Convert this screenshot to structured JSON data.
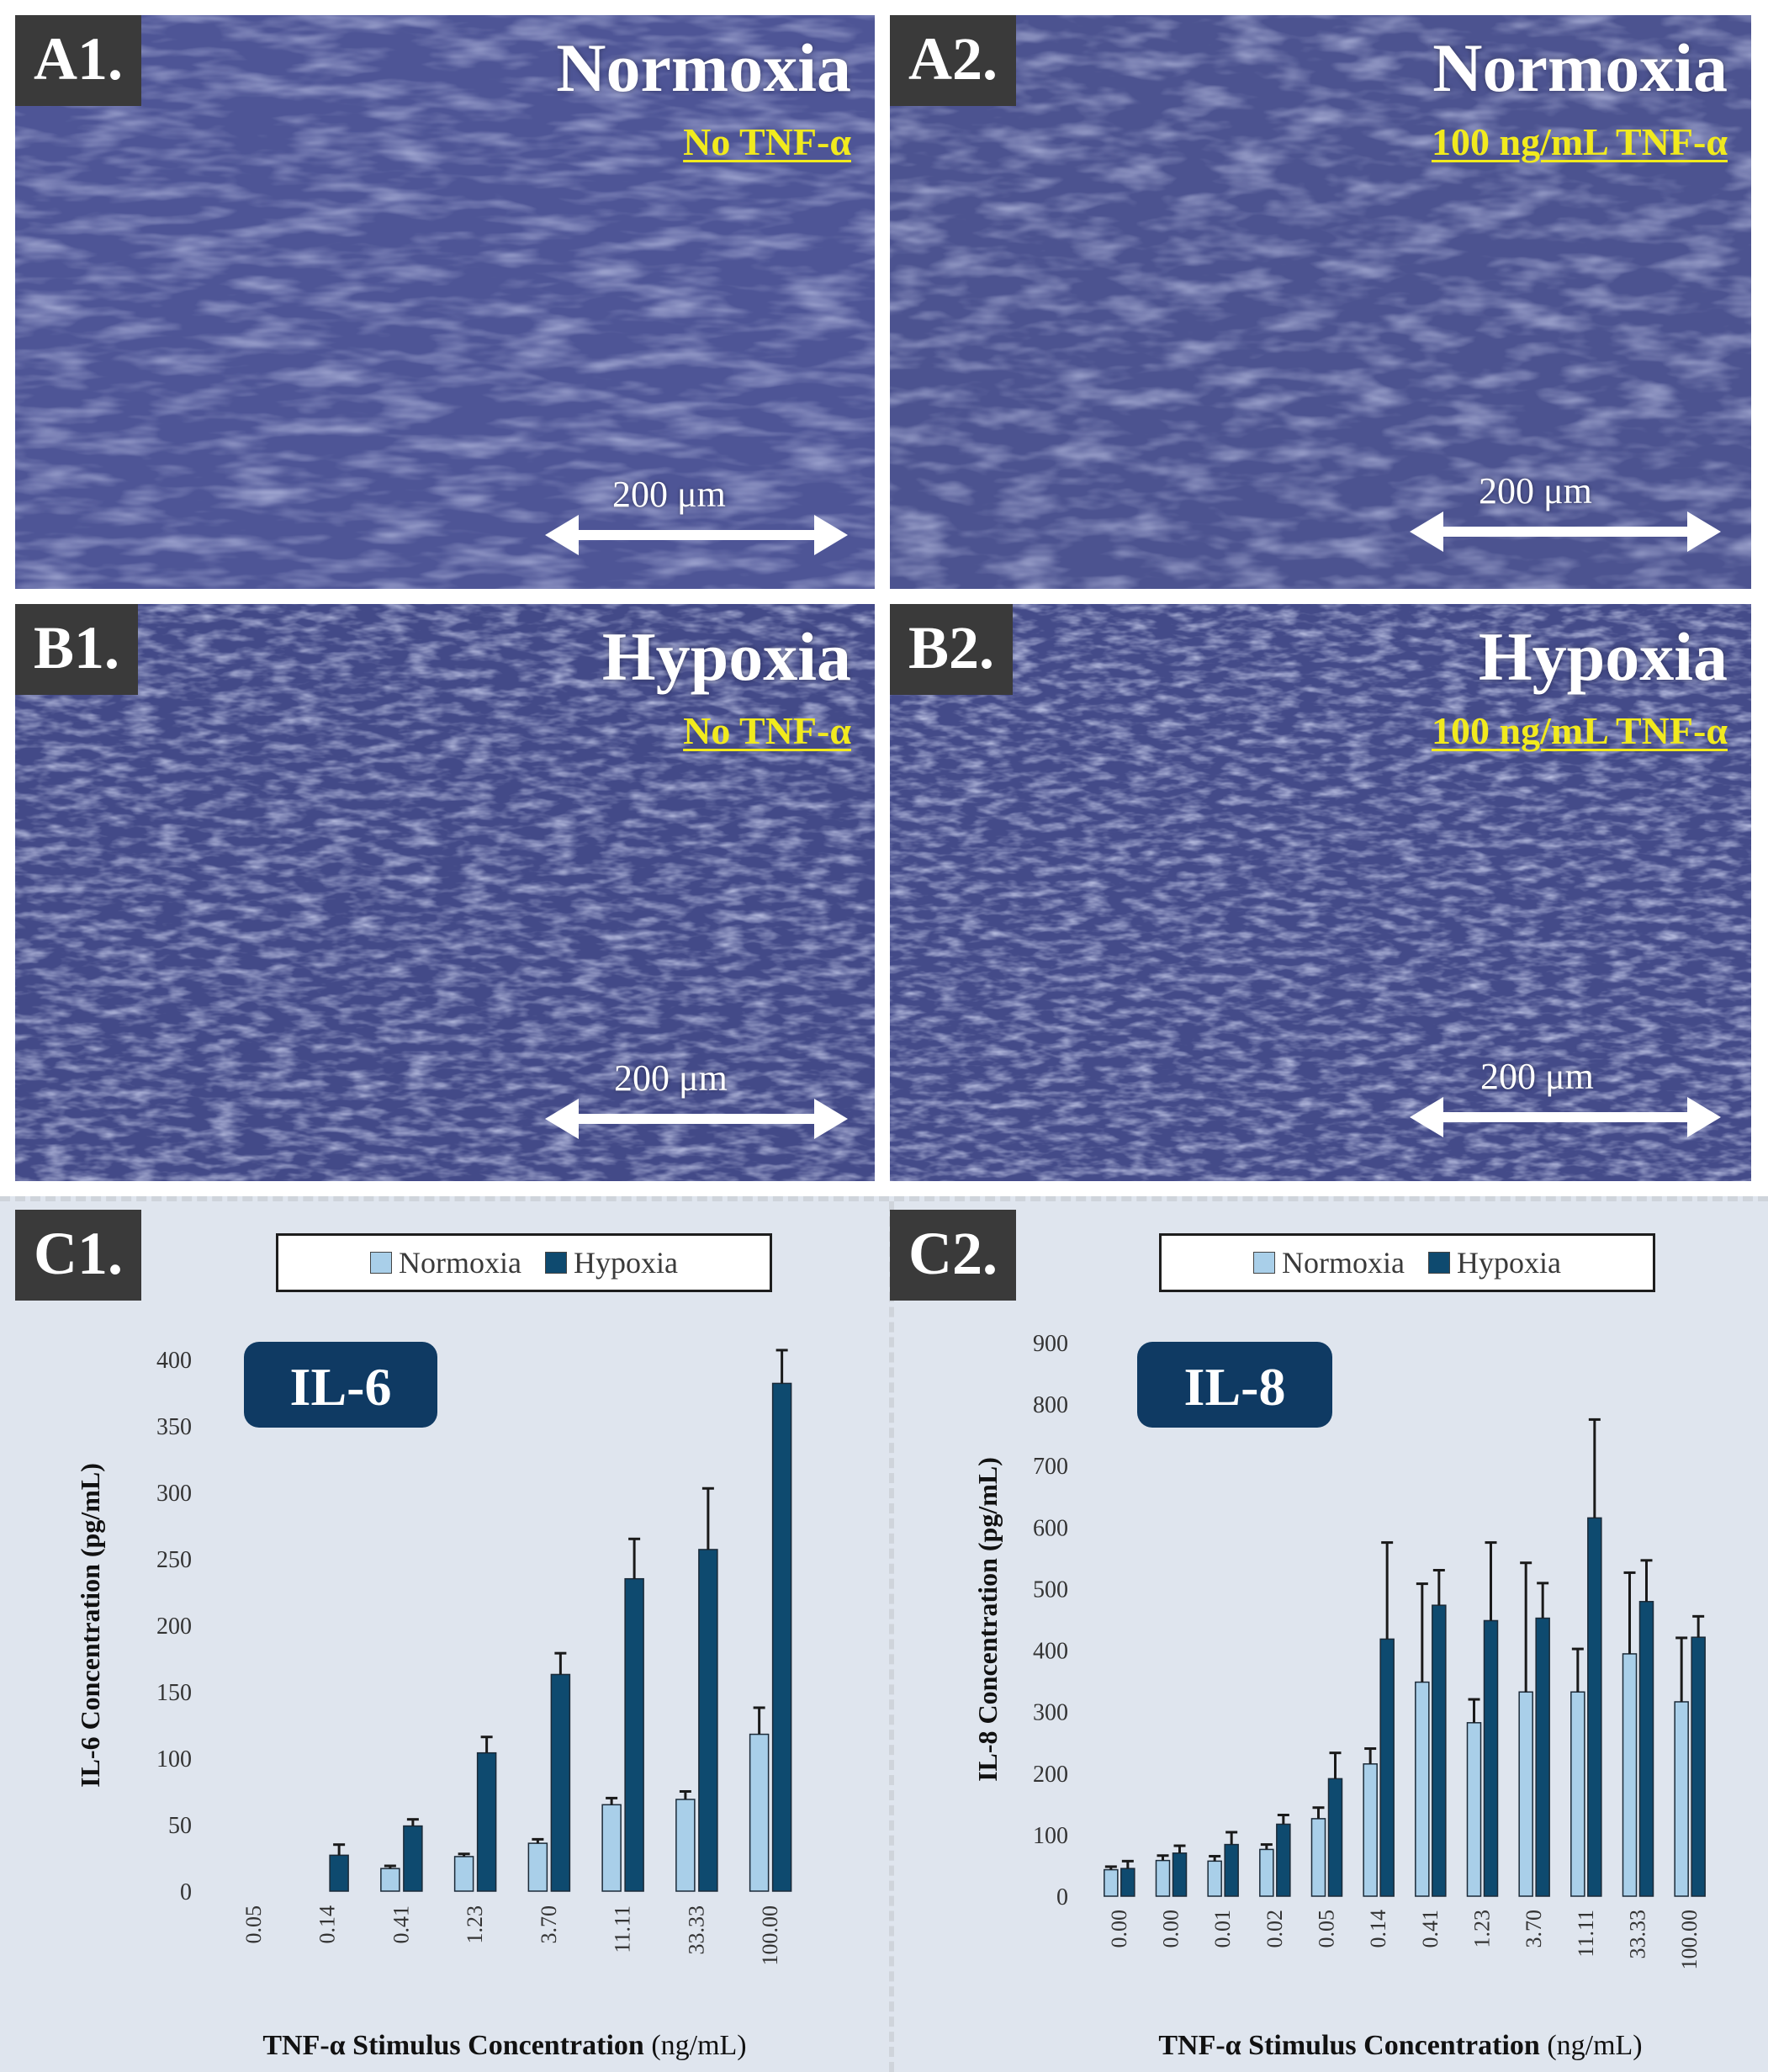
{
  "panels": [
    {
      "tag": "A1.",
      "condition": "Normoxia",
      "tnf": "No TNF-α",
      "scale": "200 μm"
    },
    {
      "tag": "A2.",
      "condition": "Normoxia",
      "tnf": "100 ng/mL TNF-α",
      "scale": "200 μm"
    },
    {
      "tag": "B1.",
      "condition": "Hypoxia",
      "tnf": "No TNF-α",
      "scale": "200 μm"
    },
    {
      "tag": "B2.",
      "condition": "Hypoxia",
      "tnf": "100 ng/mL TNF-α",
      "scale": "200 μm"
    }
  ],
  "colors": {
    "normoxia": "#a9cfe9",
    "hypoxia": "#0e4a6f",
    "badge": "#0f3a63",
    "background": "#dfe5ee"
  },
  "chart_data": [
    {
      "tag": "C1.",
      "type": "bar",
      "badge": "IL-6",
      "legend": [
        "Normoxia",
        "Hypoxia"
      ],
      "categories": [
        "0.05",
        "0.14",
        "0.41",
        "1.23",
        "3.70",
        "11.11",
        "33.33",
        "100.00"
      ],
      "series": [
        {
          "name": "Normoxia",
          "values": [
            0,
            0,
            17,
            26,
            36,
            65,
            69,
            118
          ],
          "errors": [
            0,
            0,
            2,
            2,
            3,
            5,
            6,
            20
          ]
        },
        {
          "name": "Hypoxia",
          "values": [
            0,
            27,
            49,
            104,
            163,
            235,
            257,
            382
          ],
          "errors": [
            0,
            8,
            5,
            12,
            16,
            30,
            46,
            25
          ]
        }
      ],
      "yticks": [
        "0",
        "50",
        "100",
        "150",
        "200",
        "250",
        "300",
        "350",
        "400"
      ],
      "ylim": [
        0,
        400
      ],
      "ylabel": "IL-6 Concentration (pg/mL)",
      "xlabel_bold": "TNF-α Stimulus Concentration",
      "xlabel_unit": "(ng/mL)"
    },
    {
      "tag": "C2.",
      "type": "bar",
      "badge": "IL-8",
      "legend": [
        "Normoxia",
        "Hypoxia"
      ],
      "categories": [
        "0.00",
        "0.00",
        "0.01",
        "0.02",
        "0.05",
        "0.14",
        "0.41",
        "1.23",
        "3.70",
        "11.11",
        "33.33",
        "100.00"
      ],
      "series": [
        {
          "name": "Normoxia",
          "values": [
            43,
            58,
            57,
            76,
            126,
            215,
            348,
            282,
            332,
            332,
            394,
            316
          ],
          "errors": [
            5,
            8,
            8,
            8,
            18,
            25,
            160,
            38,
            210,
            70,
            132,
            104
          ]
        },
        {
          "name": "Hypoxia",
          "values": [
            45,
            70,
            84,
            117,
            191,
            418,
            473,
            448,
            452,
            615,
            479,
            421
          ],
          "errors": [
            12,
            12,
            20,
            15,
            42,
            157,
            57,
            127,
            57,
            160,
            67,
            34
          ]
        }
      ],
      "yticks": [
        "0",
        "100",
        "200",
        "300",
        "400",
        "500",
        "600",
        "700",
        "800",
        "900"
      ],
      "ylim": [
        0,
        900
      ],
      "ylabel": "IL-8 Concentration (pg/mL)",
      "xlabel_bold": "TNF-α Stimulus Concentration",
      "xlabel_unit": "(ng/mL)"
    }
  ]
}
